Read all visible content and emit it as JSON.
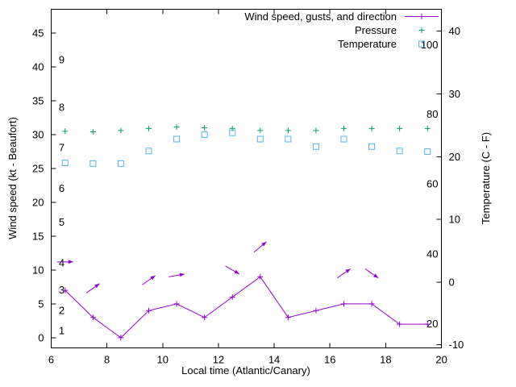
{
  "chart_data": {
    "type": "line",
    "background": "#ffffff",
    "axis_color": "#000000",
    "grid": false,
    "legend_position": "top-right-inside",
    "x_axis": {
      "label": "Local time (Atlantic/Canary)",
      "min": 6,
      "max": 20,
      "ticks": [
        6,
        8,
        10,
        12,
        14,
        16,
        18,
        20
      ]
    },
    "y_left": {
      "label": "Wind speed (kt - Beaufort)",
      "min": -1.5,
      "max": 48.5,
      "ticks": [
        0,
        5,
        10,
        15,
        20,
        25,
        30,
        35,
        40,
        45
      ],
      "beaufort_labels": [
        {
          "label": "1",
          "kt": 1
        },
        {
          "label": "2",
          "kt": 4
        },
        {
          "label": "3",
          "kt": 7
        },
        {
          "label": "4",
          "kt": 11
        },
        {
          "label": "5",
          "kt": 17
        },
        {
          "label": "6",
          "kt": 22
        },
        {
          "label": "7",
          "kt": 28
        },
        {
          "label": "8",
          "kt": 34
        },
        {
          "label": "9",
          "kt": 41
        }
      ]
    },
    "y_right": {
      "label": "Temperature (C - F)",
      "min": -10.5,
      "max": 43.5,
      "ticks": [
        -10,
        0,
        10,
        20,
        30,
        40
      ],
      "fahrenheit_labels": [
        {
          "label": "20",
          "c": -6.7
        },
        {
          "label": "40",
          "c": 4.4
        },
        {
          "label": "60",
          "c": 15.6
        },
        {
          "label": "80",
          "c": 26.7
        },
        {
          "label": "100",
          "c": 37.8
        }
      ]
    },
    "x": [
      6.5,
      7.5,
      8.5,
      9.5,
      10.5,
      11.5,
      12.5,
      13.5,
      14.5,
      15.5,
      16.5,
      17.5,
      18.5,
      19.5
    ],
    "series": [
      {
        "name": "Wind speed, gusts, and direction",
        "color": "#9400d3",
        "marker": "plus",
        "line": true,
        "axis": "left",
        "values": [
          7,
          3,
          0,
          4,
          5,
          3,
          6,
          9,
          3,
          4,
          5,
          5,
          2,
          2
        ]
      },
      {
        "name": "Pressure",
        "color": "#009e73",
        "marker": "plus",
        "line": false,
        "axis": "left",
        "values": [
          30.5,
          30.4,
          30.6,
          30.9,
          31.1,
          31.0,
          30.9,
          30.6,
          30.6,
          30.6,
          30.9,
          30.9,
          30.9,
          30.9
        ]
      },
      {
        "name": "Temperature",
        "color": "#56b4e9",
        "marker": "square",
        "line": false,
        "axis": "right",
        "values": [
          19.0,
          18.9,
          18.9,
          20.9,
          22.8,
          23.5,
          23.8,
          22.8,
          22.8,
          21.6,
          22.8,
          21.6,
          20.9,
          20.8
        ]
      }
    ],
    "wind_arrows": [
      {
        "x": 6.5,
        "kt": 11.2,
        "angle_deg": 0
      },
      {
        "x": 7.5,
        "kt": 7.3,
        "angle_deg": 35
      },
      {
        "x": 9.5,
        "kt": 8.5,
        "angle_deg": 35
      },
      {
        "x": 10.5,
        "kt": 9.2,
        "angle_deg": 10
      },
      {
        "x": 12.5,
        "kt": 10.0,
        "angle_deg": -30
      },
      {
        "x": 13.5,
        "kt": 13.4,
        "angle_deg": 40
      },
      {
        "x": 16.5,
        "kt": 9.5,
        "angle_deg": 35
      },
      {
        "x": 17.5,
        "kt": 9.5,
        "angle_deg": -35
      }
    ]
  }
}
